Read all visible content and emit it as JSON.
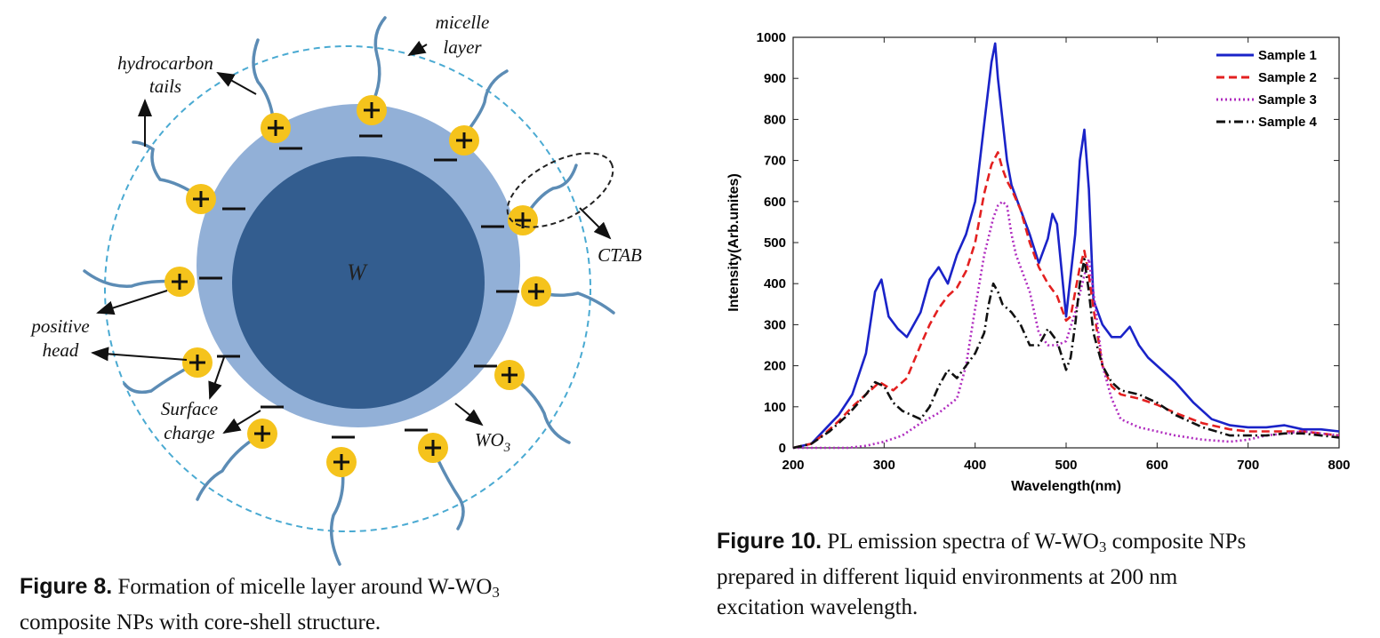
{
  "figure8": {
    "diagram_labels": {
      "core": "W",
      "micelle_line1": "micelle",
      "micelle_line2": "layer",
      "hydrocarbon_line1": "hydrocarbon",
      "hydrocarbon_line2": "tails",
      "ctab": "CTAB",
      "positive_line1": "positive",
      "positive_line2": "head",
      "surface_line1": "Surface",
      "surface_line2": "charge",
      "wo3_main": "WO",
      "wo3_sub": "3"
    },
    "caption": {
      "label": "Figure 8.",
      "line1": "Formation of micelle layer around W-WO",
      "sub": "3",
      "line2": "composite NPs with core-shell structure."
    },
    "colors": {
      "core": "#335d8f",
      "shell": "#92b0d7",
      "micelle_ring": "#4aaad2",
      "head": "#f5c31c",
      "tail": "#5c8cb5"
    }
  },
  "figure10": {
    "caption": {
      "label": "Figure 10.",
      "line1_a": "PL emission spectra of W-WO",
      "sub": "3",
      "line1_b": " composite NPs",
      "line2": "prepared in different liquid environments at 200 nm",
      "line3": "excitation wavelength."
    }
  },
  "chart_data": {
    "type": "line",
    "title": "",
    "xlabel": "Wavelength(nm)",
    "ylabel": "Intensity(Arb.unites)",
    "xlim": [
      200,
      800
    ],
    "ylim": [
      0,
      1000
    ],
    "xticks": [
      200,
      300,
      400,
      500,
      600,
      700,
      800
    ],
    "yticks": [
      0,
      100,
      200,
      300,
      400,
      500,
      600,
      700,
      800,
      900,
      1000
    ],
    "legend_position": "top-right",
    "grid": false,
    "series": [
      {
        "name": "Sample 1",
        "color": "#1a23c8",
        "style": "solid",
        "x": [
          200,
          220,
          235,
          250,
          265,
          280,
          290,
          297,
          305,
          315,
          325,
          340,
          350,
          360,
          370,
          380,
          390,
          400,
          410,
          418,
          422,
          425,
          430,
          435,
          440,
          450,
          460,
          470,
          480,
          485,
          490,
          500,
          510,
          515,
          520,
          525,
          530,
          540,
          550,
          560,
          570,
          580,
          590,
          600,
          620,
          640,
          660,
          680,
          700,
          720,
          740,
          760,
          780,
          800
        ],
        "y": [
          0,
          10,
          45,
          80,
          130,
          230,
          380,
          410,
          320,
          290,
          270,
          330,
          410,
          440,
          400,
          470,
          520,
          600,
          790,
          940,
          985,
          900,
          800,
          700,
          640,
          580,
          520,
          450,
          510,
          570,
          545,
          320,
          520,
          700,
          775,
          630,
          360,
          300,
          270,
          270,
          295,
          250,
          220,
          200,
          160,
          110,
          70,
          55,
          50,
          50,
          55,
          45,
          45,
          40
        ]
      },
      {
        "name": "Sample 2",
        "color": "#e32020",
        "style": "dashed",
        "x": [
          200,
          220,
          235,
          250,
          265,
          280,
          295,
          310,
          325,
          340,
          350,
          360,
          370,
          380,
          390,
          400,
          410,
          418,
          425,
          430,
          435,
          440,
          450,
          460,
          470,
          480,
          490,
          500,
          505,
          510,
          515,
          520,
          525,
          530,
          540,
          550,
          560,
          580,
          600,
          620,
          650,
          680,
          700,
          720,
          740,
          760,
          780,
          800
        ],
        "y": [
          0,
          10,
          35,
          65,
          100,
          130,
          160,
          140,
          170,
          250,
          300,
          340,
          370,
          390,
          430,
          500,
          620,
          690,
          720,
          680,
          650,
          630,
          580,
          500,
          440,
          400,
          370,
          310,
          320,
          380,
          440,
          480,
          420,
          340,
          200,
          150,
          130,
          120,
          105,
          85,
          60,
          45,
          40,
          40,
          40,
          40,
          35,
          30
        ]
      },
      {
        "name": "Sample 3",
        "color": "#b02cbf",
        "style": "dotted",
        "x": [
          200,
          220,
          240,
          260,
          280,
          300,
          320,
          340,
          360,
          380,
          390,
          400,
          410,
          420,
          425,
          430,
          435,
          440,
          445,
          450,
          460,
          470,
          480,
          490,
          500,
          510,
          520,
          525,
          530,
          540,
          550,
          560,
          580,
          600,
          620,
          650,
          680,
          700,
          720,
          740,
          760,
          780,
          800
        ],
        "y": [
          0,
          0,
          0,
          0,
          5,
          15,
          30,
          60,
          85,
          120,
          200,
          340,
          470,
          560,
          590,
          600,
          590,
          520,
          470,
          440,
          380,
          280,
          250,
          250,
          260,
          330,
          420,
          460,
          380,
          200,
          120,
          70,
          50,
          40,
          30,
          20,
          15,
          20,
          30,
          35,
          40,
          35,
          30
        ]
      },
      {
        "name": "Sample 4",
        "color": "#111111",
        "style": "dashdot",
        "x": [
          200,
          220,
          240,
          260,
          280,
          290,
          300,
          310,
          320,
          340,
          350,
          360,
          370,
          380,
          390,
          400,
          410,
          415,
          420,
          425,
          430,
          440,
          450,
          460,
          470,
          480,
          490,
          500,
          505,
          510,
          515,
          520,
          525,
          530,
          540,
          550,
          560,
          580,
          600,
          620,
          650,
          680,
          700,
          720,
          740,
          760,
          780,
          800
        ],
        "y": [
          0,
          10,
          40,
          80,
          130,
          160,
          150,
          110,
          90,
          70,
          100,
          150,
          190,
          170,
          200,
          230,
          280,
          350,
          400,
          380,
          350,
          330,
          300,
          250,
          250,
          290,
          260,
          190,
          220,
          300,
          400,
          460,
          380,
          280,
          200,
          160,
          140,
          130,
          110,
          80,
          50,
          30,
          30,
          30,
          35,
          35,
          30,
          25
        ]
      }
    ]
  }
}
